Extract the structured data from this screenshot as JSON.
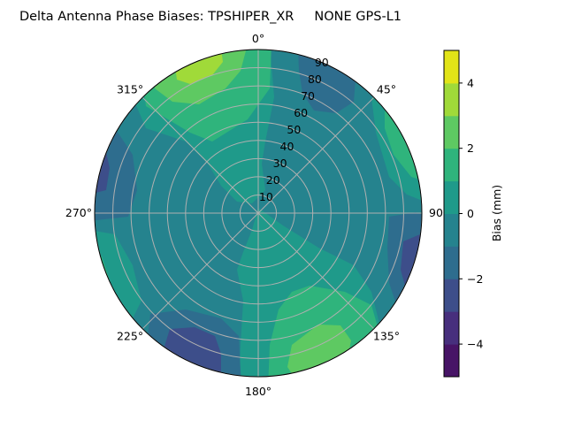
{
  "chart_data": {
    "type": "contour",
    "projection": "polar",
    "title": "Delta Antenna Phase Biases: TPSHIPER_XR     NONE GPS-L1",
    "theta_zero_location": "top",
    "theta_direction": "clockwise",
    "theta_tick_labels": [
      "0°",
      "45°",
      "90°",
      "135°",
      "180°",
      "225°",
      "270°",
      "315°"
    ],
    "theta_ticks_deg": [
      0,
      45,
      90,
      135,
      180,
      225,
      270,
      315
    ],
    "radial_ticks": [
      10,
      20,
      30,
      40,
      50,
      60,
      70,
      80,
      90
    ],
    "radial_tick_labels": [
      "10",
      "20",
      "30",
      "40",
      "50",
      "60",
      "70",
      "80",
      "90"
    ],
    "rlim": [
      0,
      90
    ],
    "grid": true,
    "colormap": "viridis",
    "levels": [
      -5,
      -4,
      -3,
      -2,
      -1,
      0,
      1,
      2,
      3,
      4,
      5
    ],
    "level_colors": [
      "#471466",
      "#472f7d",
      "#3d4e8a",
      "#2e6d8e",
      "#25838e",
      "#1f9a8a",
      "#2fb47c",
      "#5ec962",
      "#a0da39",
      "#e2e418"
    ],
    "colorbar": {
      "label": "Bias (mm)",
      "ticks": [
        4,
        2,
        0,
        -2,
        -4
      ],
      "tick_labels": [
        "4",
        "2",
        "0",
        "−2",
        "−4"
      ],
      "range": [
        -5,
        5
      ]
    }
  }
}
